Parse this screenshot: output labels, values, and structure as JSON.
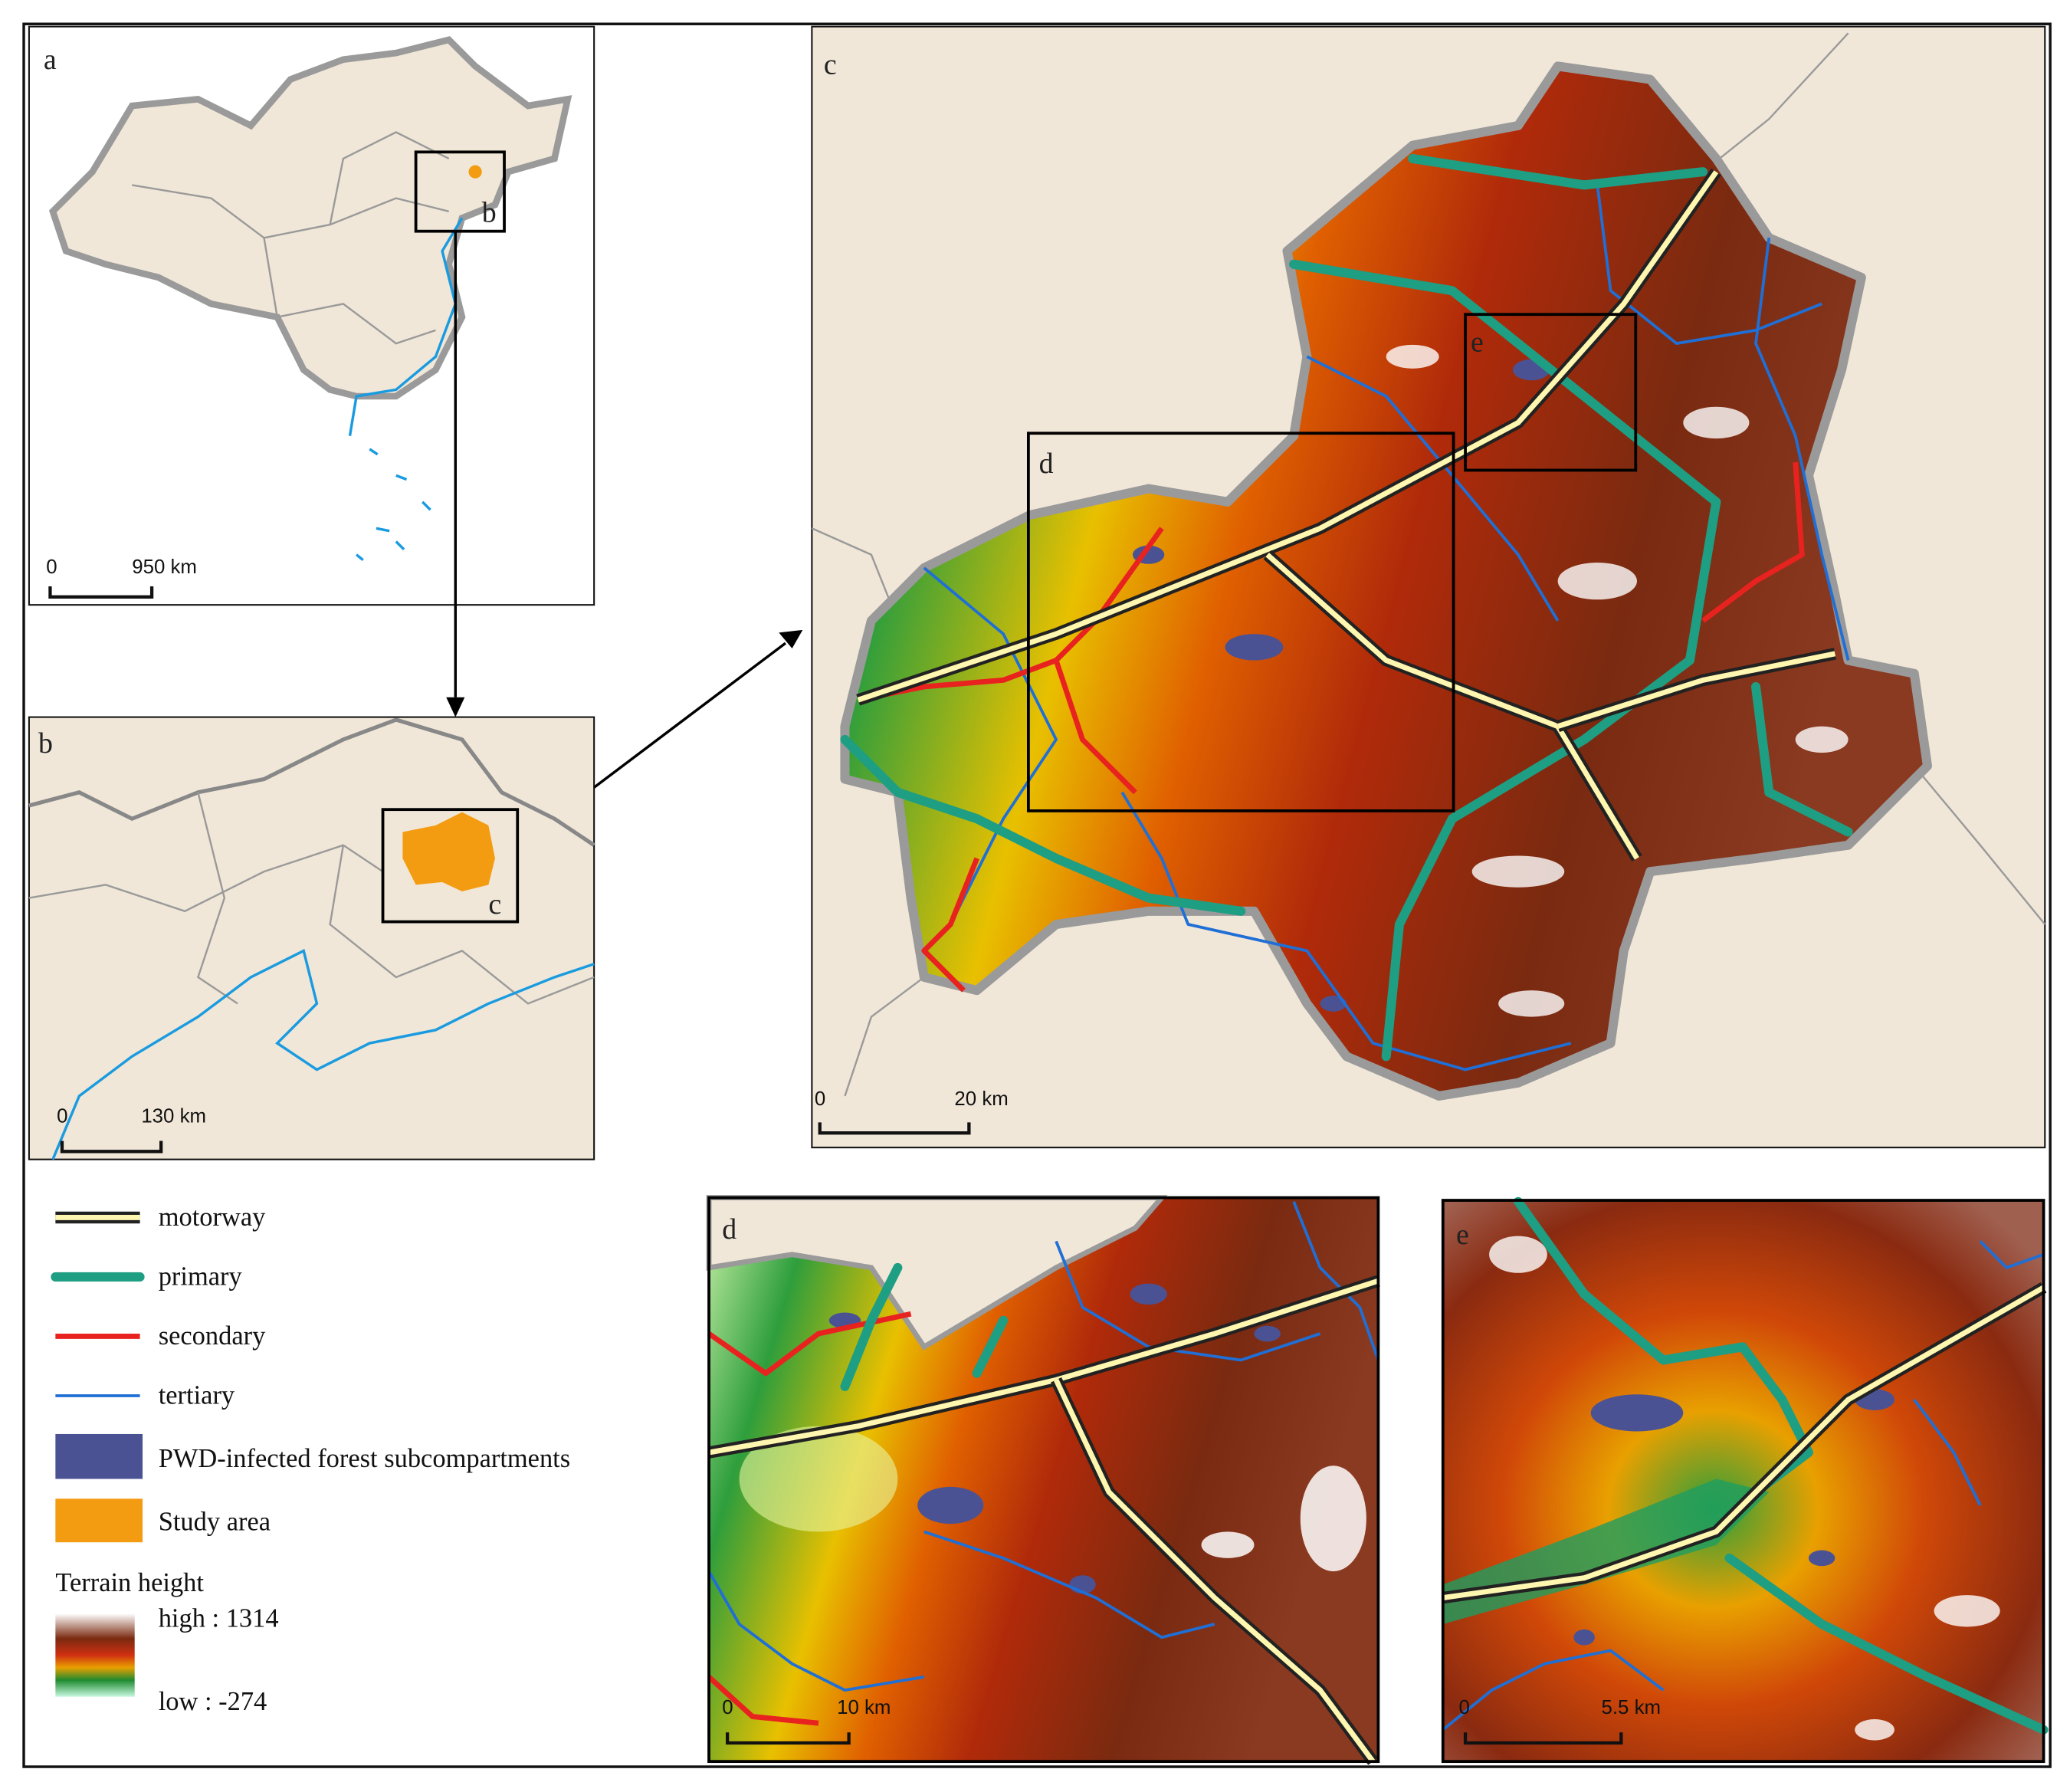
{
  "panels": {
    "a": {
      "label": "a",
      "scale": {
        "zero": "0",
        "length": "950 km"
      },
      "inset_label": "b"
    },
    "b": {
      "label": "b",
      "scale": {
        "zero": "0",
        "length": "130 km"
      },
      "inset_label": "c"
    },
    "c": {
      "label": "c",
      "scale": {
        "zero": "0",
        "length": "20 km"
      },
      "inset_labels": [
        "d",
        "e"
      ]
    },
    "d": {
      "label": "d",
      "scale": {
        "zero": "0",
        "length": "10 km"
      }
    },
    "e": {
      "label": "e",
      "scale": {
        "zero": "0",
        "length": "5.5 km"
      }
    }
  },
  "legend": {
    "items": [
      "motorway",
      "primary",
      "secondary",
      "tertiary",
      "PWD-infected forest subcompartments",
      "Study area"
    ],
    "terrain": {
      "title": "Terrain height",
      "high": "high : 1314",
      "low": "low : -274"
    }
  }
}
